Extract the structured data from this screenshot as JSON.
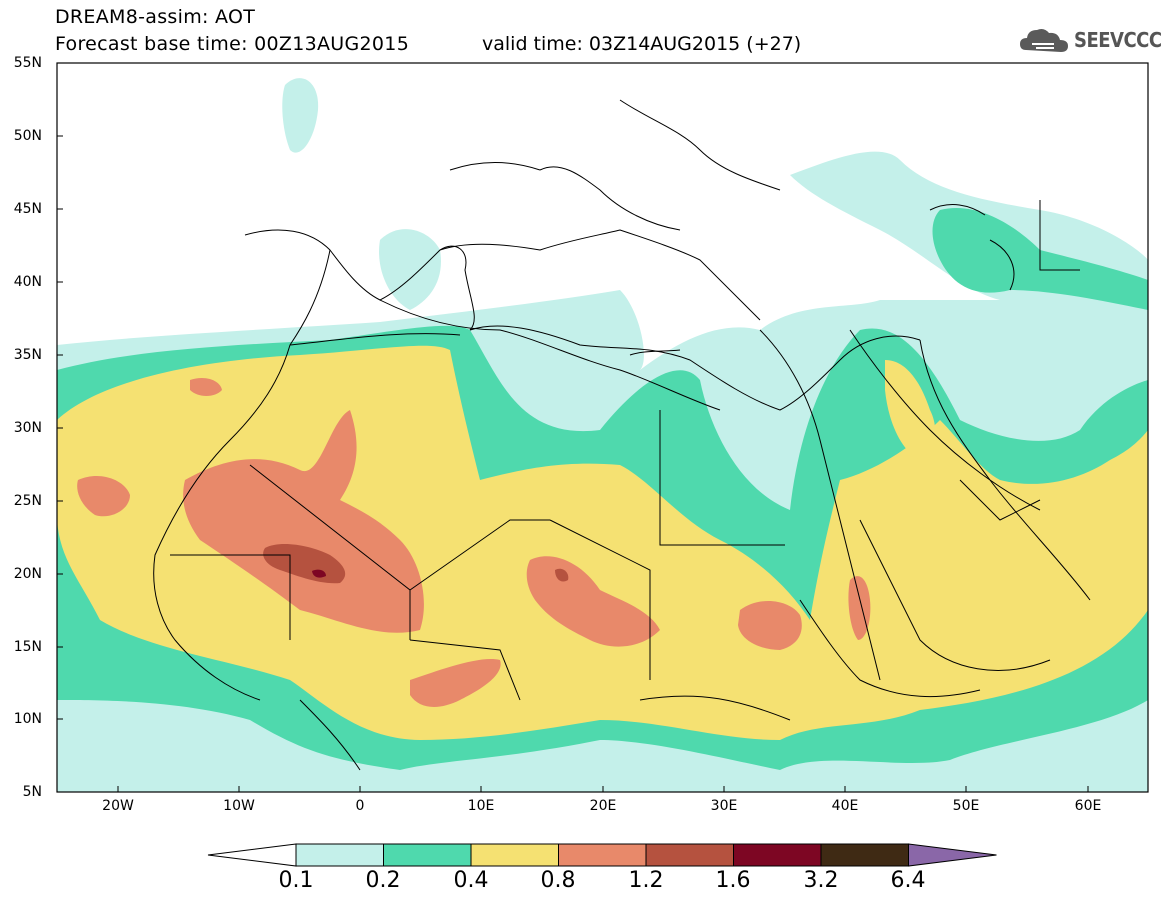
{
  "header": {
    "model_line": "DREAM8-assim: AOT",
    "base_time_line": "Forecast base time: 00Z13AUG2015",
    "valid_time_line": "valid time: 03Z14AUG2015 (+27)"
  },
  "logo": {
    "text": "SEEVCCC",
    "icon": "cloud-icon"
  },
  "map": {
    "lon_range": [
      -25,
      65
    ],
    "lat_range": [
      5,
      55
    ],
    "lat_labels": [
      "55N",
      "50N",
      "45N",
      "40N",
      "35N",
      "30N",
      "25N",
      "20N",
      "15N",
      "10N",
      "5N"
    ],
    "lon_labels": [
      "20W",
      "10W",
      "0",
      "10E",
      "20E",
      "30E",
      "40E",
      "50E",
      "60E"
    ]
  },
  "legend": {
    "thresholds": [
      "0.1",
      "0.2",
      "0.4",
      "0.8",
      "1.2",
      "1.6",
      "3.2",
      "6.4"
    ],
    "colors": [
      "#ffffff",
      "#c4f0ea",
      "#4fd9ad",
      "#f5e172",
      "#e8896a",
      "#b5523f",
      "#7d0623",
      "#3f2a14",
      "#8a67a8"
    ]
  },
  "colors": {
    "land": "#ffffff",
    "border": "#000000"
  }
}
